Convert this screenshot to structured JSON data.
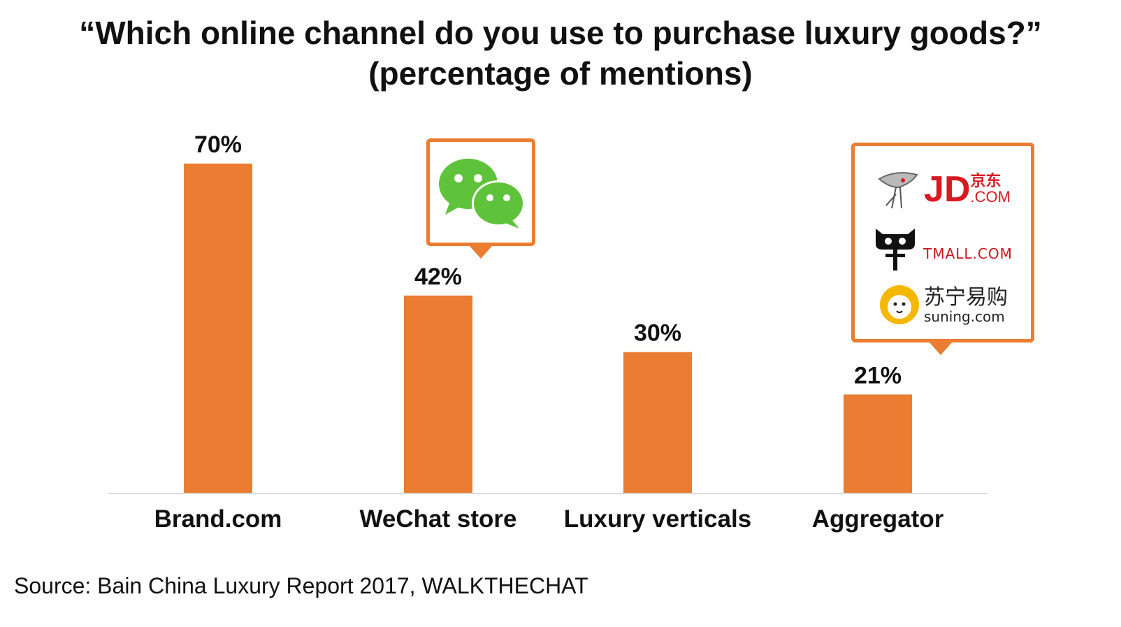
{
  "title_line1": "“Which online channel do you use to purchase luxury goods?”",
  "title_line2": "(percentage of mentions)",
  "source": "Source: Bain China Luxury Report 2017, WALKTHECHAT",
  "colors": {
    "bar": "#ea7d31",
    "axis": "#d9d9d9",
    "wechat": "#5ec23a",
    "jd": "#d71a21",
    "tmall": "#c8161d",
    "suning": "#f5b800"
  },
  "logos": {
    "wechat": "wechat-logo",
    "jd": {
      "name": "jd-logo",
      "latin": "JD",
      "suffix": ".COM",
      "cjk": "京东"
    },
    "tmall": {
      "name": "tmall-logo",
      "text": "TMALL.COM"
    },
    "suning": {
      "name": "suning-logo",
      "cjk": "苏宁易购",
      "latin": "suning.com"
    }
  },
  "chart_data": {
    "type": "bar",
    "categories": [
      "Brand.com",
      "WeChat store",
      "Luxury verticals",
      "Aggregator"
    ],
    "values": [
      70,
      42,
      30,
      21
    ],
    "value_labels": [
      "70%",
      "42%",
      "30%",
      "21%"
    ],
    "title": "“Which online channel do you use to purchase luxury goods?” (percentage of mentions)",
    "xlabel": "",
    "ylabel": "",
    "ylim": [
      0,
      70
    ],
    "grid": false,
    "legend": "none"
  }
}
